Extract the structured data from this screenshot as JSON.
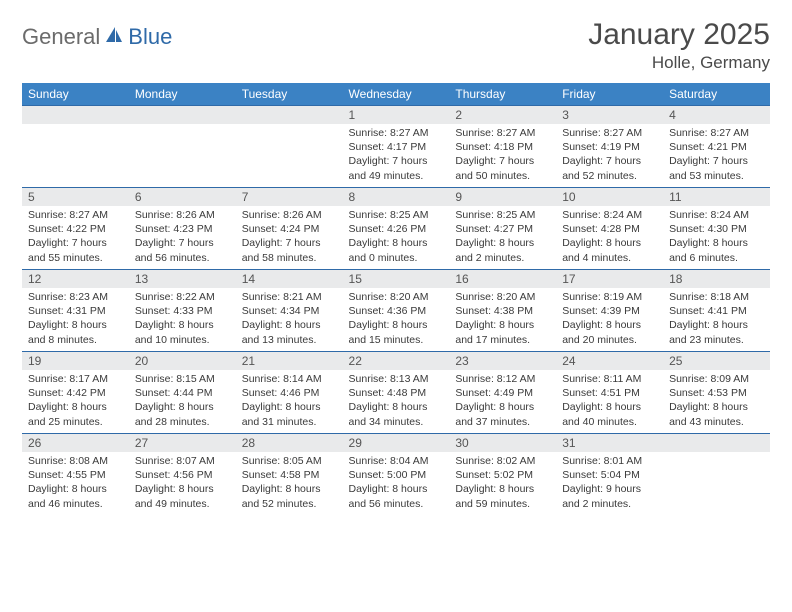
{
  "logo": {
    "general": "General",
    "blue": "Blue"
  },
  "title": "January 2025",
  "location": "Holle, Germany",
  "colors": {
    "header_bg": "#3b82c4",
    "header_text": "#ffffff",
    "daynum_bg": "#e9eaeb",
    "border": "#2f6aa8",
    "text": "#3a3a3a",
    "logo_gray": "#6b6b6b",
    "logo_blue": "#2f6aa8"
  },
  "weekdays": [
    "Sunday",
    "Monday",
    "Tuesday",
    "Wednesday",
    "Thursday",
    "Friday",
    "Saturday"
  ],
  "weeks": [
    [
      null,
      null,
      null,
      {
        "n": "1",
        "sr": "Sunrise: 8:27 AM",
        "ss": "Sunset: 4:17 PM",
        "d1": "Daylight: 7 hours",
        "d2": "and 49 minutes."
      },
      {
        "n": "2",
        "sr": "Sunrise: 8:27 AM",
        "ss": "Sunset: 4:18 PM",
        "d1": "Daylight: 7 hours",
        "d2": "and 50 minutes."
      },
      {
        "n": "3",
        "sr": "Sunrise: 8:27 AM",
        "ss": "Sunset: 4:19 PM",
        "d1": "Daylight: 7 hours",
        "d2": "and 52 minutes."
      },
      {
        "n": "4",
        "sr": "Sunrise: 8:27 AM",
        "ss": "Sunset: 4:21 PM",
        "d1": "Daylight: 7 hours",
        "d2": "and 53 minutes."
      }
    ],
    [
      {
        "n": "5",
        "sr": "Sunrise: 8:27 AM",
        "ss": "Sunset: 4:22 PM",
        "d1": "Daylight: 7 hours",
        "d2": "and 55 minutes."
      },
      {
        "n": "6",
        "sr": "Sunrise: 8:26 AM",
        "ss": "Sunset: 4:23 PM",
        "d1": "Daylight: 7 hours",
        "d2": "and 56 minutes."
      },
      {
        "n": "7",
        "sr": "Sunrise: 8:26 AM",
        "ss": "Sunset: 4:24 PM",
        "d1": "Daylight: 7 hours",
        "d2": "and 58 minutes."
      },
      {
        "n": "8",
        "sr": "Sunrise: 8:25 AM",
        "ss": "Sunset: 4:26 PM",
        "d1": "Daylight: 8 hours",
        "d2": "and 0 minutes."
      },
      {
        "n": "9",
        "sr": "Sunrise: 8:25 AM",
        "ss": "Sunset: 4:27 PM",
        "d1": "Daylight: 8 hours",
        "d2": "and 2 minutes."
      },
      {
        "n": "10",
        "sr": "Sunrise: 8:24 AM",
        "ss": "Sunset: 4:28 PM",
        "d1": "Daylight: 8 hours",
        "d2": "and 4 minutes."
      },
      {
        "n": "11",
        "sr": "Sunrise: 8:24 AM",
        "ss": "Sunset: 4:30 PM",
        "d1": "Daylight: 8 hours",
        "d2": "and 6 minutes."
      }
    ],
    [
      {
        "n": "12",
        "sr": "Sunrise: 8:23 AM",
        "ss": "Sunset: 4:31 PM",
        "d1": "Daylight: 8 hours",
        "d2": "and 8 minutes."
      },
      {
        "n": "13",
        "sr": "Sunrise: 8:22 AM",
        "ss": "Sunset: 4:33 PM",
        "d1": "Daylight: 8 hours",
        "d2": "and 10 minutes."
      },
      {
        "n": "14",
        "sr": "Sunrise: 8:21 AM",
        "ss": "Sunset: 4:34 PM",
        "d1": "Daylight: 8 hours",
        "d2": "and 13 minutes."
      },
      {
        "n": "15",
        "sr": "Sunrise: 8:20 AM",
        "ss": "Sunset: 4:36 PM",
        "d1": "Daylight: 8 hours",
        "d2": "and 15 minutes."
      },
      {
        "n": "16",
        "sr": "Sunrise: 8:20 AM",
        "ss": "Sunset: 4:38 PM",
        "d1": "Daylight: 8 hours",
        "d2": "and 17 minutes."
      },
      {
        "n": "17",
        "sr": "Sunrise: 8:19 AM",
        "ss": "Sunset: 4:39 PM",
        "d1": "Daylight: 8 hours",
        "d2": "and 20 minutes."
      },
      {
        "n": "18",
        "sr": "Sunrise: 8:18 AM",
        "ss": "Sunset: 4:41 PM",
        "d1": "Daylight: 8 hours",
        "d2": "and 23 minutes."
      }
    ],
    [
      {
        "n": "19",
        "sr": "Sunrise: 8:17 AM",
        "ss": "Sunset: 4:42 PM",
        "d1": "Daylight: 8 hours",
        "d2": "and 25 minutes."
      },
      {
        "n": "20",
        "sr": "Sunrise: 8:15 AM",
        "ss": "Sunset: 4:44 PM",
        "d1": "Daylight: 8 hours",
        "d2": "and 28 minutes."
      },
      {
        "n": "21",
        "sr": "Sunrise: 8:14 AM",
        "ss": "Sunset: 4:46 PM",
        "d1": "Daylight: 8 hours",
        "d2": "and 31 minutes."
      },
      {
        "n": "22",
        "sr": "Sunrise: 8:13 AM",
        "ss": "Sunset: 4:48 PM",
        "d1": "Daylight: 8 hours",
        "d2": "and 34 minutes."
      },
      {
        "n": "23",
        "sr": "Sunrise: 8:12 AM",
        "ss": "Sunset: 4:49 PM",
        "d1": "Daylight: 8 hours",
        "d2": "and 37 minutes."
      },
      {
        "n": "24",
        "sr": "Sunrise: 8:11 AM",
        "ss": "Sunset: 4:51 PM",
        "d1": "Daylight: 8 hours",
        "d2": "and 40 minutes."
      },
      {
        "n": "25",
        "sr": "Sunrise: 8:09 AM",
        "ss": "Sunset: 4:53 PM",
        "d1": "Daylight: 8 hours",
        "d2": "and 43 minutes."
      }
    ],
    [
      {
        "n": "26",
        "sr": "Sunrise: 8:08 AM",
        "ss": "Sunset: 4:55 PM",
        "d1": "Daylight: 8 hours",
        "d2": "and 46 minutes."
      },
      {
        "n": "27",
        "sr": "Sunrise: 8:07 AM",
        "ss": "Sunset: 4:56 PM",
        "d1": "Daylight: 8 hours",
        "d2": "and 49 minutes."
      },
      {
        "n": "28",
        "sr": "Sunrise: 8:05 AM",
        "ss": "Sunset: 4:58 PM",
        "d1": "Daylight: 8 hours",
        "d2": "and 52 minutes."
      },
      {
        "n": "29",
        "sr": "Sunrise: 8:04 AM",
        "ss": "Sunset: 5:00 PM",
        "d1": "Daylight: 8 hours",
        "d2": "and 56 minutes."
      },
      {
        "n": "30",
        "sr": "Sunrise: 8:02 AM",
        "ss": "Sunset: 5:02 PM",
        "d1": "Daylight: 8 hours",
        "d2": "and 59 minutes."
      },
      {
        "n": "31",
        "sr": "Sunrise: 8:01 AM",
        "ss": "Sunset: 5:04 PM",
        "d1": "Daylight: 9 hours",
        "d2": "and 2 minutes."
      },
      null
    ]
  ]
}
